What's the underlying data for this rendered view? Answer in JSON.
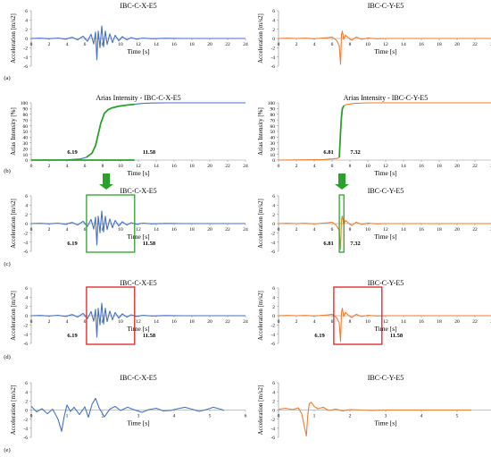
{
  "chart_data": [
    {
      "type": "line",
      "panel": "(a)",
      "title": "IBC-C-X-E5",
      "xlabel": "Time [s]",
      "ylabel": "Acceleration [m/s2]",
      "xlim": [
        0,
        24
      ],
      "xticks": [
        0,
        2,
        4,
        6,
        8,
        10,
        12,
        14,
        16,
        18,
        20,
        22,
        24
      ],
      "ylim": [
        -6,
        6
      ],
      "yticks": [
        -6,
        -4,
        -2,
        0,
        2,
        4,
        6
      ],
      "grid": false,
      "series": [
        {
          "color": "#4472c4",
          "x": [
            0,
            1,
            2,
            3,
            3.8,
            4.6,
            5.2,
            5.8,
            6.3,
            6.7,
            7,
            7.2,
            7.35,
            7.5,
            7.7,
            7.9,
            8.1,
            8.3,
            8.5,
            8.8,
            9.1,
            9.4,
            9.8,
            10.2,
            10.7,
            11.2,
            11.8,
            12.5,
            13.5,
            15,
            17,
            20,
            24
          ],
          "y": [
            0,
            0.05,
            -0.05,
            0.1,
            -0.15,
            0.25,
            -0.3,
            0.5,
            -0.6,
            0.9,
            -1.2,
            1.4,
            -4.6,
            1.6,
            -2,
            2.7,
            -1.8,
            1.6,
            -1.3,
            1,
            -0.9,
            0.7,
            -0.5,
            0.4,
            -0.3,
            0.2,
            -0.15,
            0.1,
            -0.05,
            0.03,
            0,
            0,
            0
          ]
        }
      ]
    },
    {
      "type": "line",
      "panel": "",
      "title": "IBC-C-Y-E5",
      "xlabel": "Time [s]",
      "ylabel": "Acceleration [m/s2]",
      "xlim": [
        0,
        24
      ],
      "xticks": [
        0,
        2,
        4,
        6,
        8,
        10,
        12,
        14,
        16,
        18,
        20,
        22,
        24
      ],
      "ylim": [
        -6,
        6
      ],
      "yticks": [
        -6,
        -4,
        -2,
        0,
        2,
        4,
        6
      ],
      "grid": false,
      "series": [
        {
          "color": "#ed7d31",
          "x": [
            0,
            1,
            2,
            3,
            4,
            5,
            5.5,
            6,
            6.5,
            6.8,
            6.95,
            7.05,
            7.15,
            7.3,
            7.5,
            7.8,
            8.2,
            8.7,
            9.3,
            10,
            11,
            12,
            14,
            17,
            20,
            24
          ],
          "y": [
            0,
            0.05,
            0,
            0.05,
            -0.05,
            0.1,
            0.15,
            0.3,
            -0.4,
            -1.5,
            -5.6,
            0.8,
            1.6,
            -0.2,
            0.7,
            0.2,
            -0.4,
            0.3,
            -0.2,
            0.1,
            -0.05,
            0,
            0,
            0,
            0,
            0
          ]
        }
      ]
    },
    {
      "type": "line",
      "panel": "(b)",
      "title": "Arias Intensity  - IBC-C-X-E5",
      "xlabel": "Time [s]",
      "ylabel": "Arias Intensity [%]",
      "xlim": [
        0,
        24
      ],
      "xticks": [
        0,
        2,
        4,
        6,
        8,
        10,
        12,
        14,
        16,
        18,
        20,
        22,
        24
      ],
      "ylim": [
        0,
        100
      ],
      "yticks": [
        0,
        10,
        20,
        30,
        40,
        50,
        60,
        70,
        80,
        90,
        100
      ],
      "grid": false,
      "annotations": [
        "6.19",
        "11.58"
      ],
      "series": [
        {
          "color": "#4472c4",
          "x": [
            0,
            4,
            5.5,
            6.2,
            6.8,
            7.2,
            7.5,
            7.8,
            8.2,
            8.6,
            9,
            9.8,
            10.6,
            11.6,
            12.5,
            13.5,
            15,
            18,
            24
          ],
          "y": [
            0,
            0.5,
            2,
            5,
            12,
            25,
            45,
            65,
            82,
            88,
            91,
            94,
            96,
            97.5,
            99,
            99.7,
            100,
            100,
            100
          ]
        },
        {
          "color": "#2ca02c",
          "x": [
            6.19,
            6.8,
            7.2,
            7.5,
            7.8,
            8.2,
            8.6,
            9,
            9.8,
            10.6,
            11.58
          ],
          "y": [
            5,
            12,
            25,
            45,
            65,
            82,
            88,
            91,
            94,
            96,
            97.5
          ]
        },
        {
          "color": "#2ca02c",
          "x": [
            0,
            11.58
          ],
          "y": [
            0,
            0
          ]
        }
      ]
    },
    {
      "type": "line",
      "panel": "",
      "title": "Arias Intensity  - IBC-C-Y-E5",
      "xlabel": "Time [s]",
      "ylabel": "Arias Intensity [%]",
      "xlim": [
        0,
        24
      ],
      "xticks": [
        0,
        2,
        4,
        6,
        8,
        10,
        12,
        14,
        16,
        18,
        20,
        22,
        24
      ],
      "ylim": [
        0,
        100
      ],
      "yticks": [
        0,
        10,
        20,
        30,
        40,
        50,
        60,
        70,
        80,
        90,
        100
      ],
      "grid": false,
      "annotations": [
        "6.81",
        "7.32"
      ],
      "series": [
        {
          "color": "#ed7d31",
          "x": [
            0,
            5,
            6,
            6.6,
            6.81,
            6.95,
            7.05,
            7.15,
            7.32,
            7.6,
            8.5,
            10,
            24
          ],
          "y": [
            0,
            1,
            2,
            3,
            5,
            50,
            75,
            90,
            95,
            97,
            99,
            100,
            100
          ]
        },
        {
          "color": "#2ca02c",
          "x": [
            6.81,
            6.95,
            7.05,
            7.15,
            7.32
          ],
          "y": [
            5,
            50,
            75,
            90,
            95
          ]
        }
      ]
    },
    {
      "type": "line",
      "panel": "(c)",
      "title": "IBC-C-X-E5",
      "xlabel": "Time [s]",
      "ylabel": "Acceleration [m/s2]",
      "xlim": [
        0,
        24
      ],
      "xticks": [
        0,
        2,
        4,
        6,
        8,
        10,
        12,
        14,
        16,
        18,
        20,
        22,
        24
      ],
      "ylim": [
        -6,
        6
      ],
      "yticks": [
        -6,
        -4,
        -2,
        0,
        2,
        4,
        6
      ],
      "grid": false,
      "annotations": [
        "6.19",
        "11.58"
      ],
      "window": {
        "x0": 6.19,
        "x1": 11.58,
        "color": "#2ca02c"
      },
      "series_ref": "(a) X"
    },
    {
      "type": "line",
      "panel": "",
      "title": "IBC-C-Y-E5",
      "xlabel": "Time [s]",
      "ylabel": "Acceleration [m/s2]",
      "xlim": [
        0,
        24
      ],
      "xticks": [
        0,
        2,
        4,
        6,
        8,
        10,
        12,
        14,
        16,
        18,
        20,
        22,
        24
      ],
      "ylim": [
        -6,
        6
      ],
      "yticks": [
        -6,
        -4,
        -2,
        0,
        2,
        4,
        6
      ],
      "grid": false,
      "annotations": [
        "6.81",
        "7.32"
      ],
      "window": {
        "x0": 6.81,
        "x1": 7.32,
        "color": "#2ca02c"
      },
      "series_ref": "(a) Y"
    },
    {
      "type": "line",
      "panel": "(d)",
      "title": "IBC-C-X-E5",
      "xlabel": "Time [s]",
      "ylabel": "Acceleration [m/s2]",
      "xlim": [
        0,
        24
      ],
      "xticks": [
        0,
        2,
        4,
        6,
        8,
        10,
        12,
        14,
        16,
        18,
        20,
        22,
        24
      ],
      "ylim": [
        -6,
        6
      ],
      "yticks": [
        -6,
        -4,
        -2,
        0,
        2,
        4,
        6
      ],
      "grid": false,
      "annotations": [
        "6.19",
        "11.58"
      ],
      "window": {
        "x0": 6.19,
        "x1": 11.58,
        "color": "#e02020"
      },
      "series_ref": "(a) X"
    },
    {
      "type": "line",
      "panel": "",
      "title": "IBC-C-Y-E5",
      "xlabel": "Time [s]",
      "ylabel": "Acceleration [m/s2]",
      "xlim": [
        0,
        24
      ],
      "xticks": [
        0,
        2,
        4,
        6,
        8,
        10,
        12,
        14,
        16,
        18,
        20,
        22,
        24
      ],
      "ylim": [
        -6,
        6
      ],
      "yticks": [
        -6,
        -4,
        -2,
        0,
        2,
        4,
        6
      ],
      "grid": false,
      "annotations": [
        "6.19",
        "11.58"
      ],
      "window": {
        "x0": 6.19,
        "x1": 11.58,
        "color": "#e02020"
      },
      "series_ref": "(a) Y"
    },
    {
      "type": "line",
      "panel": "(e)",
      "title": "IBC-C-X-E5",
      "xlabel": "Time [s]",
      "ylabel": "Acceleration [m/s2]",
      "xlim": [
        0,
        6
      ],
      "xticks": [
        0,
        1,
        2,
        3,
        4,
        5,
        6
      ],
      "ylim": [
        -6,
        6
      ],
      "yticks": [
        -6,
        -4,
        -2,
        0,
        2,
        4,
        6
      ],
      "grid": false,
      "series": [
        {
          "color": "#4472c4",
          "x": [
            0,
            0.15,
            0.3,
            0.45,
            0.6,
            0.75,
            0.85,
            0.92,
            1,
            1.1,
            1.2,
            1.35,
            1.5,
            1.6,
            1.7,
            1.8,
            1.9,
            2.05,
            2.2,
            2.35,
            2.5,
            2.7,
            2.9,
            3.1,
            3.3,
            3.5,
            3.7,
            3.9,
            4.1,
            4.3,
            4.5,
            4.7,
            4.9,
            5.1,
            5.3,
            5.4
          ],
          "y": [
            0.8,
            -0.4,
            0.3,
            -0.8,
            0.2,
            -2,
            -4.7,
            -1.5,
            1.1,
            -0.3,
            0.6,
            -1,
            0.7,
            -1.6,
            1.2,
            2.6,
            0.5,
            -1.5,
            0.2,
            0.8,
            -0.1,
            0.6,
            0,
            -0.5,
            0.1,
            0.4,
            -0.2,
            -0.1,
            0.3,
            0.6,
            0.2,
            -0.3,
            0.1,
            0.6,
            0.2,
            -0.1
          ]
        }
      ]
    },
    {
      "type": "line",
      "panel": "",
      "title": "IBC-C-Y-E5",
      "xlabel": "Time [s]",
      "ylabel": "Acceleration [m/s2]",
      "xlim": [
        0,
        6
      ],
      "xticks": [
        0,
        1,
        2,
        3,
        4,
        5,
        6
      ],
      "ylim": [
        -6,
        6
      ],
      "yticks": [
        -6,
        -4,
        -2,
        0,
        2,
        4,
        6
      ],
      "grid": false,
      "series": [
        {
          "color": "#ed7d31",
          "x": [
            0,
            0.2,
            0.4,
            0.55,
            0.65,
            0.72,
            0.78,
            0.82,
            0.86,
            0.92,
            1,
            1.1,
            1.25,
            1.4,
            1.6,
            1.8,
            2,
            2.3,
            2.6,
            3,
            3.5,
            4,
            4.5,
            5,
            5.4
          ],
          "y": [
            0.2,
            0.4,
            0.1,
            0.5,
            -0.8,
            -3.5,
            -5.7,
            -1,
            1.4,
            1.7,
            0.8,
            0.3,
            0.6,
            -0.1,
            0.2,
            -0.2,
            0.1,
            0,
            -0.1,
            0,
            0,
            0,
            0,
            0,
            0
          ]
        }
      ]
    }
  ],
  "arrows": {
    "color": "#2ca02c"
  }
}
